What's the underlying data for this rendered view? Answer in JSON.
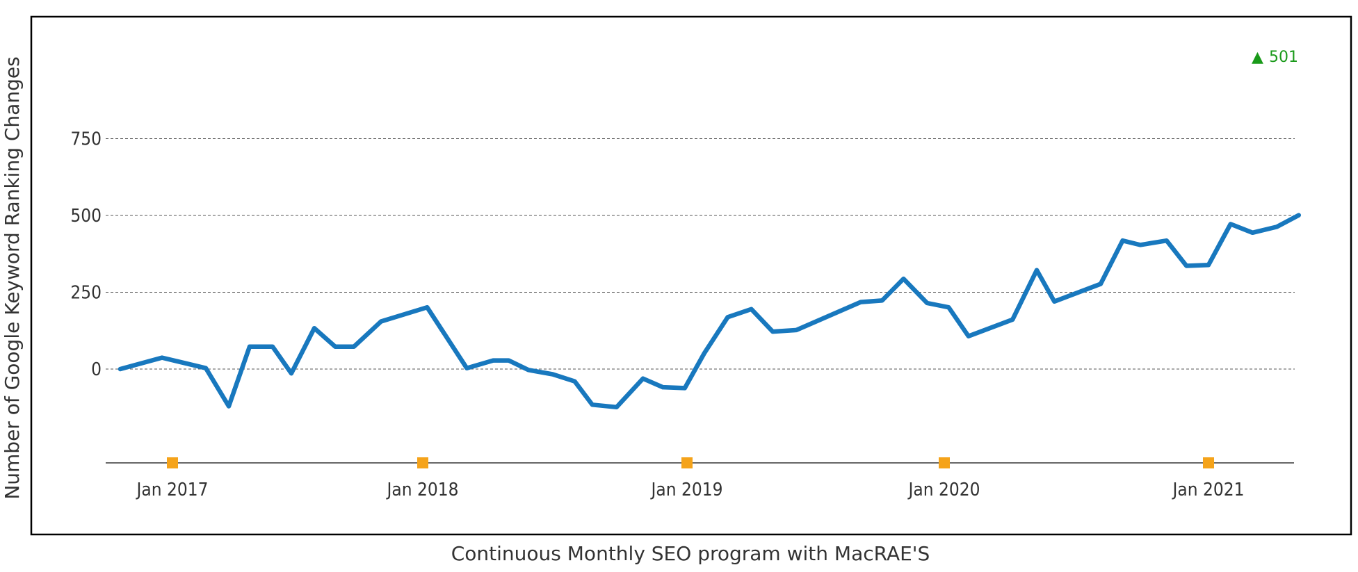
{
  "chart_data": {
    "type": "line",
    "title": "",
    "xlabel": "Continuous Monthly SEO program with MacRAE'S",
    "ylabel": "Number of Google Keyword Ranking Changes",
    "ylim": [
      -200,
      900
    ],
    "yticks": [
      0,
      250,
      500,
      750
    ],
    "ytick_labels": [
      "0",
      "250",
      "500",
      "750"
    ],
    "xtick_months": [
      0,
      12,
      24,
      36,
      48
    ],
    "xtick_labels": [
      "Jan 2017",
      "Jan 2018",
      "Jan 2019",
      "Jan 2020",
      "Jan 2021"
    ],
    "x_unit": "months since Jan 2017",
    "grid": true,
    "series": [
      {
        "name": "Keyword Ranking Changes",
        "color": "#1878be",
        "x": [
          -2.5,
          -0.5,
          1.6,
          2.7,
          3.7,
          4.8,
          5.7,
          6.8,
          7.8,
          8.7,
          10.0,
          12.2,
          14.0,
          15.2,
          15.9,
          16.8,
          17.9,
          18.9,
          19.7,
          20.8,
          22.0,
          22.9,
          23.9,
          24.8,
          25.9,
          27.0,
          28.0,
          29.1,
          32.1,
          33.1,
          34.1,
          35.2,
          36.2,
          37.1,
          39.1,
          40.2,
          41.0,
          43.1,
          44.1,
          44.9,
          46.1,
          47.0,
          48.0,
          49.0,
          50.0,
          51.1,
          52.1
        ],
        "values": [
          0,
          37,
          3,
          -121,
          73,
          73,
          -14,
          133,
          73,
          73,
          155,
          201,
          3,
          28,
          28,
          -3,
          -17,
          -40,
          -116,
          -124,
          -31,
          -59,
          -62,
          51,
          169,
          195,
          122,
          127,
          218,
          223,
          294,
          215,
          201,
          107,
          161,
          322,
          220,
          277,
          418,
          404,
          418,
          336,
          339,
          472,
          444,
          463,
          501
        ]
      }
    ],
    "annotation": {
      "symbol": "▲",
      "text": "501",
      "color": "#1a9a1a"
    },
    "tick_marker_color": "#f5a31a",
    "gridline_color": "#555555"
  }
}
